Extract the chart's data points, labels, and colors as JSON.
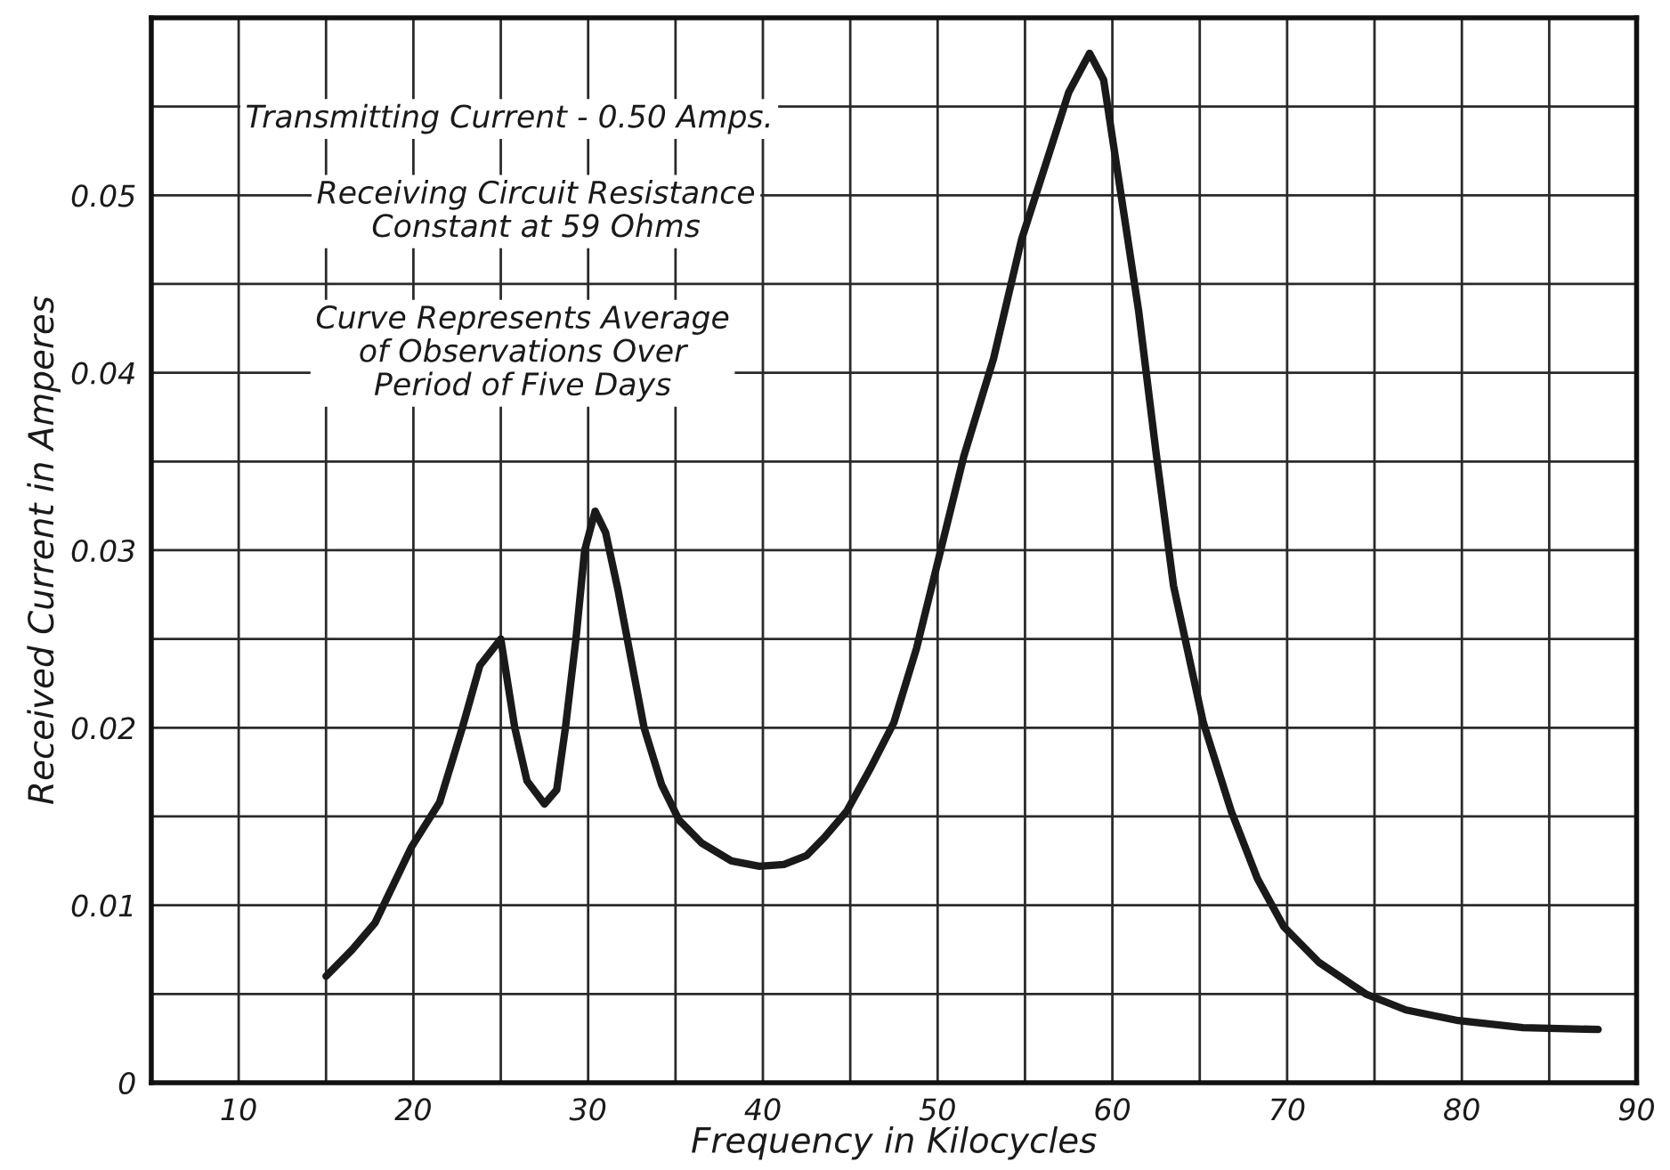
{
  "chart_data": {
    "type": "line",
    "xlabel": "Frequency in Kilocycles",
    "ylabel": "Received Current in Amperes",
    "annotations": [
      "Transmitting Current - 0.50 Amps.",
      "Receiving Circuit Resistance\nConstant at 59 Ohms",
      "Curve Represents Average\nof Observations Over\nPeriod of Five Days"
    ],
    "x": [
      15,
      16.5,
      17.8,
      19.9,
      21.5,
      22.8,
      23.8,
      25.0,
      25.8,
      26.5,
      27.5,
      28.2,
      28.7,
      29.3,
      29.8,
      30.4,
      31.0,
      31.7,
      33.2,
      34.2,
      35.2,
      36.5,
      38.2,
      39.8,
      41.2,
      42.5,
      43.5,
      44.8,
      46.2,
      47.5,
      48.8,
      49.8,
      51.5,
      53.2,
      54.8,
      56.2,
      57.5,
      58.7,
      59.5,
      60.5,
      61.5,
      62.5,
      63.5,
      65.2,
      66.8,
      68.3,
      69.8,
      71.8,
      74.5,
      76.8,
      79.8,
      83.5,
      87.8
    ],
    "series": [
      {
        "color": "#1a1a1a",
        "values": [
          0.006,
          0.0075,
          0.009,
          0.0133,
          0.0158,
          0.02,
          0.0235,
          0.025,
          0.02,
          0.017,
          0.0157,
          0.0165,
          0.02,
          0.025,
          0.03,
          0.0322,
          0.031,
          0.0278,
          0.02,
          0.0168,
          0.0148,
          0.0135,
          0.0125,
          0.0122,
          0.0123,
          0.0128,
          0.0138,
          0.0153,
          0.0178,
          0.0203,
          0.0245,
          0.0285,
          0.0353,
          0.0408,
          0.0475,
          0.0518,
          0.0558,
          0.058,
          0.0565,
          0.05,
          0.0435,
          0.0355,
          0.028,
          0.0203,
          0.0153,
          0.0115,
          0.0088,
          0.0068,
          0.005,
          0.0041,
          0.0035,
          0.0031,
          0.003
        ]
      }
    ],
    "xlim": [
      5,
      90
    ],
    "ylim": [
      0,
      0.06
    ],
    "xticks": [
      10,
      {
        "value": 15,
        "label": null
      },
      20,
      {
        "value": 25,
        "label": null
      },
      30,
      {
        "value": 35,
        "label": null
      },
      40,
      {
        "value": 45,
        "label": null
      },
      50,
      {
        "value": 55,
        "label": null
      },
      60,
      {
        "value": 65,
        "label": null
      },
      70,
      {
        "value": 75,
        "label": null
      },
      80,
      {
        "value": 85,
        "label": null
      },
      90
    ],
    "yticks": [
      0,
      {
        "value": 0.005,
        "label": null
      },
      0.01,
      {
        "value": 0.015,
        "label": null
      },
      0.02,
      {
        "value": 0.025,
        "label": null
      },
      0.03,
      {
        "value": 0.035,
        "label": null
      },
      0.04,
      {
        "value": 0.045,
        "label": null
      },
      0.05,
      {
        "value": 0.055,
        "label": null
      }
    ],
    "grid": true,
    "line_style": "solid"
  }
}
